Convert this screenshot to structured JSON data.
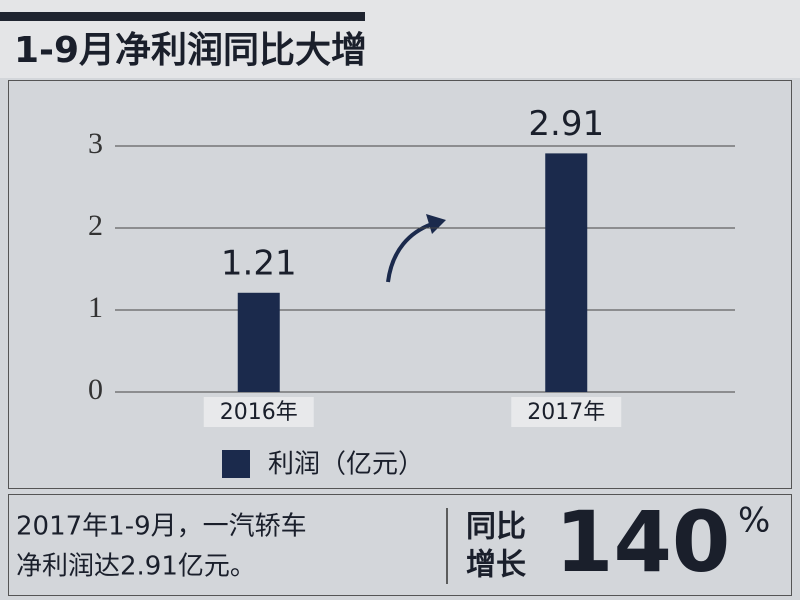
{
  "chart_data": {
    "type": "bar",
    "title": "1-9月净利润同比大增",
    "categories": [
      "2016年",
      "2017年"
    ],
    "series": [
      {
        "name": "利润（亿元）",
        "color": "#1b2a4c",
        "values": [
          1.21,
          2.91
        ]
      }
    ],
    "ylim": [
      0,
      3
    ],
    "yticks": [
      0,
      1,
      2,
      3
    ],
    "grid": true
  },
  "summary": {
    "lines": [
      "2017年1-9月，一汽轿车",
      "净利润达2.91亿元。"
    ],
    "badge_lines": [
      "同比",
      "增长"
    ],
    "value": 140,
    "unit": "%"
  }
}
